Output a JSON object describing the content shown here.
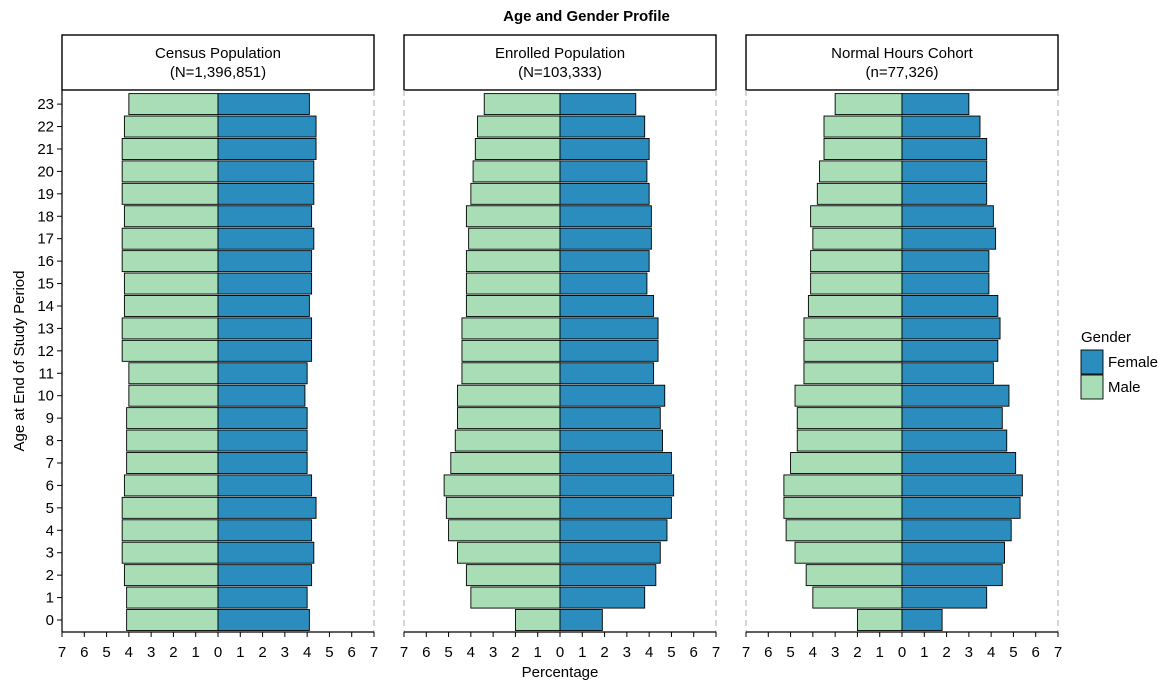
{
  "chart_title": "Age and Gender Profile",
  "colors": {
    "Female": "#2b8cbe",
    "Male": "#a8ddb5",
    "bar_outline": "#000000",
    "axis_dash": "#bbbbbb"
  },
  "chart_data": {
    "type": "bar",
    "orientation": "horizontal",
    "style": "population-pyramid",
    "title": "Age and Gender Profile",
    "xlabel": "Percentage",
    "ylabel": "Age at End of Study Period",
    "xlim": [
      -7,
      7
    ],
    "x_tick_labels": [
      "7",
      "6",
      "5",
      "4",
      "3",
      "2",
      "1",
      "0",
      "1",
      "2",
      "3",
      "4",
      "5",
      "6",
      "7"
    ],
    "categories": [
      "0",
      "1",
      "2",
      "3",
      "4",
      "5",
      "6",
      "7",
      "8",
      "9",
      "10",
      "11",
      "12",
      "13",
      "14",
      "15",
      "16",
      "17",
      "18",
      "19",
      "20",
      "21",
      "22",
      "23"
    ],
    "legend": {
      "title": "Gender",
      "entries": [
        "Female",
        "Male"
      ],
      "position": "right"
    },
    "panels": [
      {
        "strip": [
          "Census Population",
          "(N=1,396,851)"
        ],
        "series": [
          {
            "name": "Female",
            "values": [
              4.1,
              4.0,
              4.2,
              4.3,
              4.2,
              4.4,
              4.2,
              4.0,
              4.0,
              4.0,
              3.9,
              4.0,
              4.2,
              4.2,
              4.1,
              4.2,
              4.2,
              4.3,
              4.2,
              4.3,
              4.3,
              4.4,
              4.4,
              4.1
            ]
          },
          {
            "name": "Male",
            "values": [
              4.1,
              4.1,
              4.2,
              4.3,
              4.3,
              4.3,
              4.2,
              4.1,
              4.1,
              4.1,
              4.0,
              4.0,
              4.3,
              4.3,
              4.2,
              4.2,
              4.3,
              4.3,
              4.2,
              4.3,
              4.3,
              4.3,
              4.2,
              4.0
            ]
          }
        ]
      },
      {
        "strip": [
          "Enrolled Population",
          "(N=103,333)"
        ],
        "series": [
          {
            "name": "Female",
            "values": [
              1.9,
              3.8,
              4.3,
              4.5,
              4.8,
              5.0,
              5.1,
              5.0,
              4.6,
              4.5,
              4.7,
              4.2,
              4.4,
              4.4,
              4.2,
              3.9,
              4.0,
              4.1,
              4.1,
              4.0,
              3.9,
              4.0,
              3.8,
              3.4
            ]
          },
          {
            "name": "Male",
            "values": [
              2.0,
              4.0,
              4.2,
              4.6,
              5.0,
              5.1,
              5.2,
              4.9,
              4.7,
              4.6,
              4.6,
              4.4,
              4.4,
              4.4,
              4.2,
              4.2,
              4.2,
              4.1,
              4.2,
              4.0,
              3.9,
              3.8,
              3.7,
              3.4
            ]
          }
        ]
      },
      {
        "strip": [
          "Normal Hours Cohort",
          "(n=77,326)"
        ],
        "series": [
          {
            "name": "Female",
            "values": [
              1.8,
              3.8,
              4.5,
              4.6,
              4.9,
              5.3,
              5.4,
              5.1,
              4.7,
              4.5,
              4.8,
              4.1,
              4.3,
              4.4,
              4.3,
              3.9,
              3.9,
              4.2,
              4.1,
              3.8,
              3.8,
              3.8,
              3.5,
              3.0
            ]
          },
          {
            "name": "Male",
            "values": [
              2.0,
              4.0,
              4.3,
              4.8,
              5.2,
              5.3,
              5.3,
              5.0,
              4.7,
              4.7,
              4.8,
              4.4,
              4.4,
              4.4,
              4.2,
              4.1,
              4.1,
              4.0,
              4.1,
              3.8,
              3.7,
              3.5,
              3.5,
              3.0
            ]
          }
        ]
      }
    ]
  }
}
